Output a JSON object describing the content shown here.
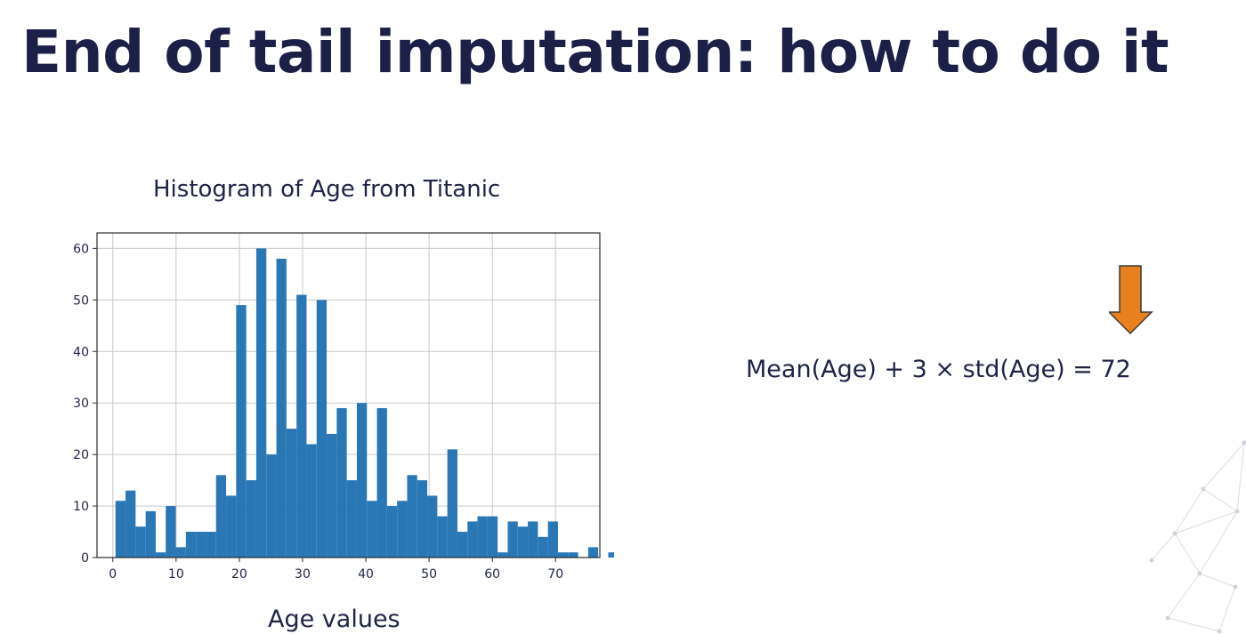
{
  "slide": {
    "title": "End of tail imputation: how to do it",
    "formula": "Mean(Age) + 3 × std(Age) = 72",
    "accent_color": "#e8801e",
    "arrow_icon": "down-arrow-icon",
    "decoration_icon": "network-graph-icon"
  },
  "chart_data": {
    "type": "bar",
    "title": "Histogram of Age from Titanic",
    "xlabel": "Age values",
    "ylabel": "",
    "xlim": [
      -2.5,
      77
    ],
    "ylim": [
      0,
      63
    ],
    "grid": true,
    "bar_color": "#2a77b6",
    "bin_start": 0.42,
    "bin_width": 1.59,
    "values": [
      11,
      13,
      6,
      9,
      1,
      10,
      2,
      5,
      5,
      5,
      16,
      12,
      49,
      15,
      60,
      20,
      58,
      25,
      51,
      22,
      50,
      24,
      29,
      15,
      30,
      11,
      29,
      10,
      11,
      16,
      15,
      12,
      8,
      21,
      5,
      7,
      8,
      8,
      1,
      7,
      6,
      7,
      4,
      7,
      1,
      1,
      0,
      2,
      0,
      1
    ],
    "x_ticks": [
      0,
      10,
      20,
      30,
      40,
      50,
      60,
      70
    ],
    "y_ticks": [
      0,
      10,
      20,
      30,
      40,
      50,
      60
    ]
  }
}
